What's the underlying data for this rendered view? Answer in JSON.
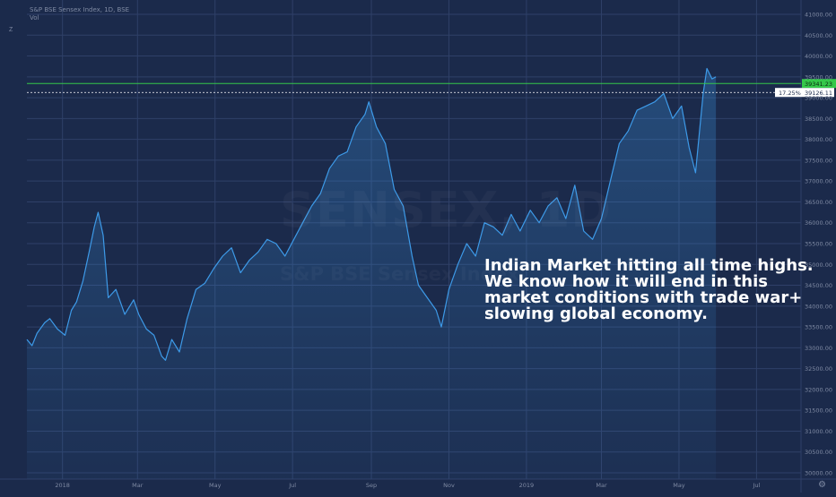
{
  "chart_data": {
    "type": "area",
    "title": "S&P BSE Sensex Index, 1D, BSE",
    "indicator": "Vol",
    "watermark_symbol": "SENSEX, 1D",
    "watermark_name": "S&P BSE Sensex Index",
    "x_ticks": [
      "2018",
      "Mar",
      "May",
      "Jul",
      "Sep",
      "Nov",
      "2019",
      "Mar",
      "May",
      "Jul"
    ],
    "ylim": [
      29900,
      41300
    ],
    "y_ticks": [
      30000,
      30500,
      31000,
      31500,
      32000,
      32500,
      33000,
      33500,
      34000,
      34500,
      35000,
      35500,
      36000,
      36500,
      37000,
      37500,
      38000,
      38500,
      39000,
      39500,
      40000,
      40500,
      41000
    ],
    "y_tick_labels": [
      "30000.00",
      "30500.00",
      "31000.00",
      "31500.00",
      "32000.00",
      "32500.00",
      "33000.00",
      "33500.00",
      "34000.00",
      "34500.00",
      "35000.00",
      "35500.00",
      "36000.00",
      "36500.00",
      "37000.00",
      "37500.00",
      "38000.00",
      "38500.00",
      "39000.00",
      "39500.00",
      "40000.00",
      "40500.00",
      "41000.00"
    ],
    "x_range": [
      "2017-12-04",
      "2019-08-05"
    ],
    "x_tick_dates": [
      "2018-01-01",
      "2018-03-01",
      "2018-05-01",
      "2018-07-01",
      "2018-09-01",
      "2018-11-01",
      "2019-01-01",
      "2019-03-01",
      "2019-05-01",
      "2019-07-01"
    ],
    "series": [
      {
        "dates": [
          "2017-12-04",
          "2017-12-08",
          "2017-12-12",
          "2017-12-18",
          "2017-12-22",
          "2017-12-28",
          "2018-01-03",
          "2018-01-08",
          "2018-01-12",
          "2018-01-17",
          "2018-01-22",
          "2018-01-26",
          "2018-01-29",
          "2018-02-02",
          "2018-02-06",
          "2018-02-12",
          "2018-02-19",
          "2018-02-26",
          "2018-03-02",
          "2018-03-08",
          "2018-03-14",
          "2018-03-20",
          "2018-03-23",
          "2018-03-28",
          "2018-04-03",
          "2018-04-09",
          "2018-04-16",
          "2018-04-23",
          "2018-04-30",
          "2018-05-07",
          "2018-05-14",
          "2018-05-21",
          "2018-05-28",
          "2018-06-04",
          "2018-06-11",
          "2018-06-18",
          "2018-06-25",
          "2018-07-02",
          "2018-07-09",
          "2018-07-16",
          "2018-07-23",
          "2018-07-30",
          "2018-08-06",
          "2018-08-13",
          "2018-08-20",
          "2018-08-27",
          "2018-08-30",
          "2018-09-05",
          "2018-09-12",
          "2018-09-19",
          "2018-09-26",
          "2018-10-03",
          "2018-10-08",
          "2018-10-15",
          "2018-10-22",
          "2018-10-26",
          "2018-11-01",
          "2018-11-08",
          "2018-11-15",
          "2018-11-22",
          "2018-11-29",
          "2018-12-06",
          "2018-12-13",
          "2018-12-20",
          "2018-12-27",
          "2019-01-04",
          "2019-01-11",
          "2019-01-18",
          "2019-01-25",
          "2019-02-01",
          "2019-02-08",
          "2019-02-15",
          "2019-02-22",
          "2019-03-01",
          "2019-03-08",
          "2019-03-15",
          "2019-03-22",
          "2019-03-29",
          "2019-04-05",
          "2019-04-12",
          "2019-04-19",
          "2019-04-26",
          "2019-05-03",
          "2019-05-09",
          "2019-05-14",
          "2019-05-20",
          "2019-05-23",
          "2019-05-27",
          "2019-05-30"
        ],
        "values": [
          33200,
          33050,
          33350,
          33600,
          33700,
          33450,
          33300,
          33900,
          34100,
          34600,
          35300,
          35900,
          36250,
          35700,
          34200,
          34400,
          33800,
          34150,
          33800,
          33450,
          33300,
          32800,
          32700,
          33200,
          32900,
          33700,
          34400,
          34550,
          34900,
          35200,
          35400,
          34800,
          35100,
          35300,
          35600,
          35500,
          35200,
          35600,
          36000,
          36400,
          36700,
          37300,
          37600,
          37700,
          38300,
          38600,
          38900,
          38300,
          37900,
          36800,
          36400,
          35200,
          34500,
          34200,
          33900,
          33500,
          34400,
          35000,
          35500,
          35200,
          36000,
          35900,
          35700,
          36200,
          35800,
          36300,
          36000,
          36400,
          36600,
          36100,
          36900,
          35800,
          35600,
          36100,
          37000,
          37900,
          38200,
          38700,
          38800,
          38900,
          39100,
          38500,
          38800,
          37800,
          37200,
          39100,
          39700,
          39450,
          39500
        ]
      }
    ],
    "current_price": "39341.23",
    "current_price_value": 39341.23,
    "marker_pct": "17.25%",
    "marker_price": "39126.11",
    "marker_value": 39126.11,
    "colors": {
      "background": "#1b2a4b",
      "grid": "#2f4068",
      "line": "#3d9ae8",
      "area_top": "#3d9ae8",
      "current_line": "#35c84a",
      "marker_line": "#ffffff",
      "axis_text": "#7f8aa3"
    }
  },
  "annotation": {
    "lines": [
      "Indian Market hitting all time highs.",
      "We know how it will end in this",
      "market conditions with trade war+",
      "slowing global economy."
    ]
  },
  "ui": {
    "z_label": "Z",
    "gear_icon": "gear-icon"
  }
}
